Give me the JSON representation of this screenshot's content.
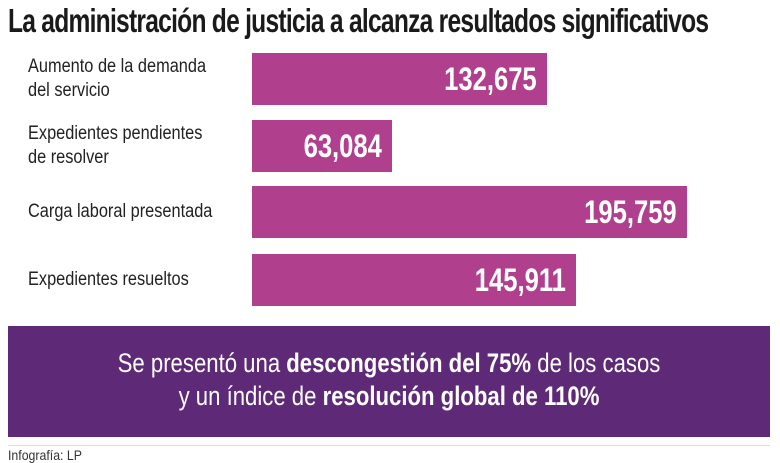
{
  "chart_data": {
    "type": "bar",
    "orientation": "horizontal",
    "title": "La administración de justicia a alcanza resultados significativos",
    "categories": [
      "Aumento de la demanda del servicio",
      "Expedientes pendientes de resolver",
      "Carga laboral presentada",
      "Expedientes resueltos"
    ],
    "category_lines": [
      [
        "Aumento de la demanda",
        "del servicio"
      ],
      [
        "Expedientes pendientes",
        "de resolver"
      ],
      [
        "Carga laboral presentada"
      ],
      [
        "Expedientes resueltos"
      ]
    ],
    "values": [
      132675,
      63084,
      195759,
      145911
    ],
    "value_labels": [
      "132,675",
      "63,084",
      "195,759",
      "145,911"
    ],
    "bar_color": "#b0408e",
    "grid": false,
    "legend": "none"
  },
  "summary": {
    "line1": {
      "pre": "Se presentó una ",
      "bold": "descongestión del 75%",
      "post": " de los casos"
    },
    "line2": {
      "pre": "y un índice de ",
      "bold": "resolución global de 110%"
    },
    "background": "#5e2a77"
  },
  "credit": "Infografía: LP"
}
